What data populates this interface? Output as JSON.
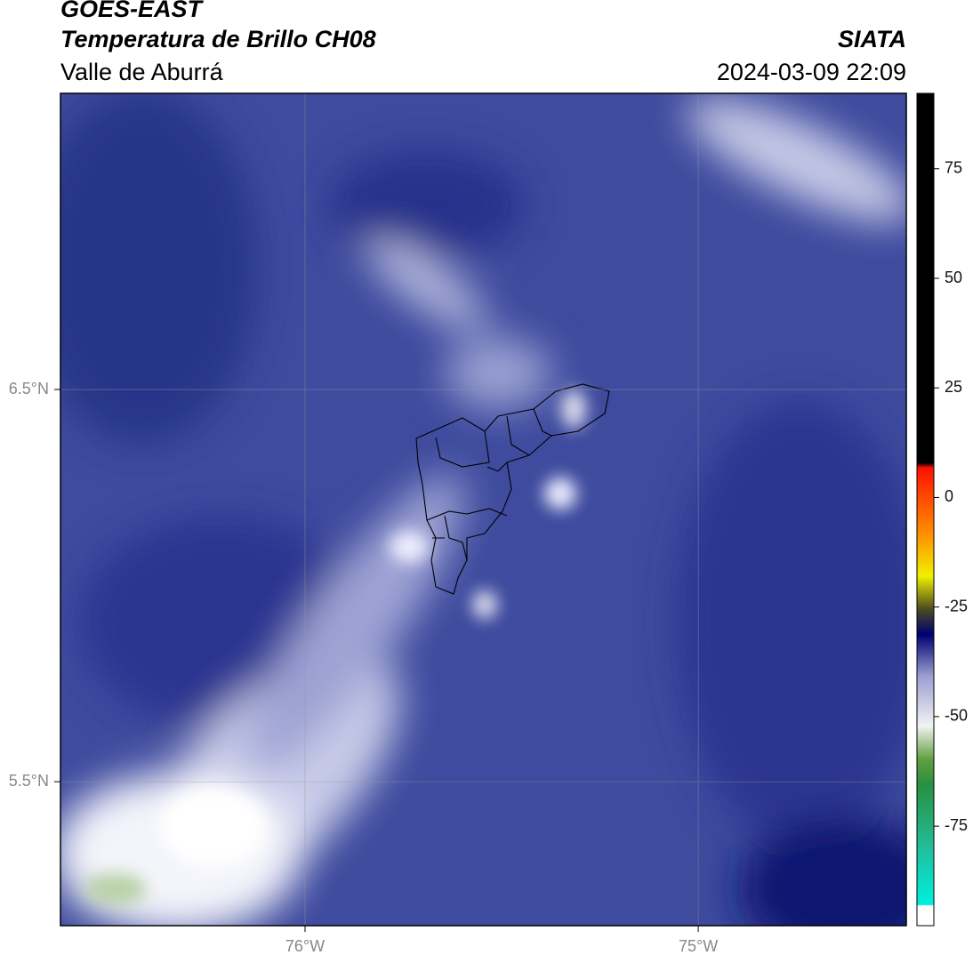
{
  "header": {
    "title": "GOES-EAST",
    "subtitle": "Temperatura de Brillo CH08",
    "region": "Valle de Aburrá",
    "source": "SIATA",
    "timestamp": "2024-03-09 22:09"
  },
  "map": {
    "xlim": [
      -76.622,
      -74.471
    ],
    "ylim": [
      5.133,
      7.255
    ],
    "xticks": [
      {
        "value": -76,
        "label": "76°W"
      },
      {
        "value": -75,
        "label": "75°W"
      }
    ],
    "yticks": [
      {
        "value": 6.5,
        "label": "6.5°N"
      },
      {
        "value": 5.5,
        "label": "5.5°N"
      }
    ],
    "grid": true
  },
  "colorbar": {
    "lim": [
      -97.7,
      92.2
    ],
    "ticks": [
      75,
      50,
      25,
      0,
      -25,
      -50,
      -75
    ]
  }
}
